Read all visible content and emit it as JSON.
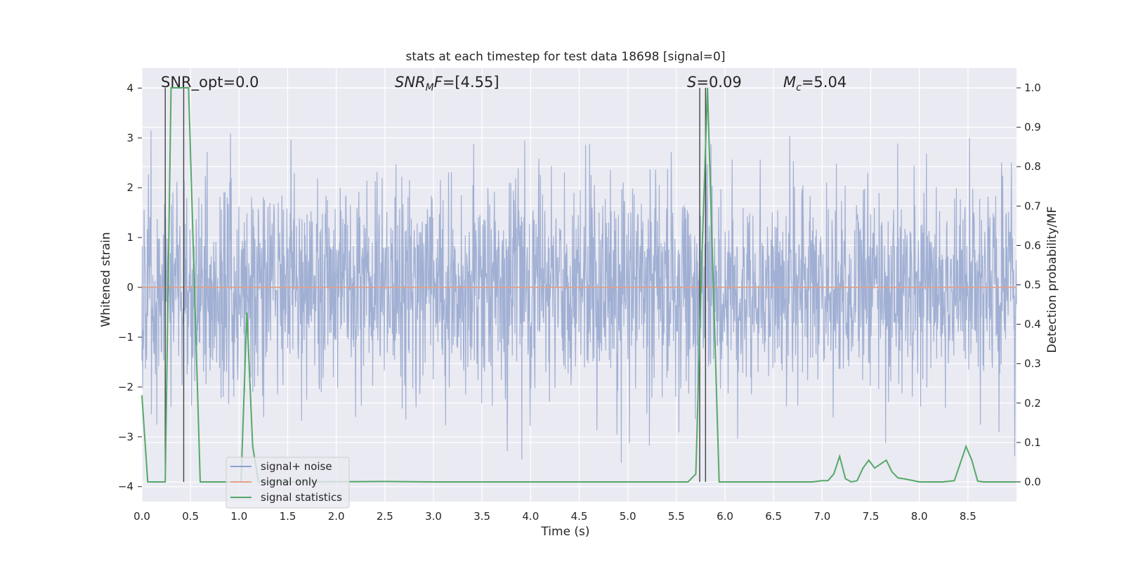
{
  "chart_data": {
    "type": "line",
    "title": "stats at each timestep for test data 18698 [signal=0]",
    "xlabel": "Time (s)",
    "ylabel": "Whitened strain",
    "ylabel_right": "Detection probability/MF",
    "xlim": [
      0.0,
      9.0
    ],
    "ylim": [
      -4.3,
      4.4
    ],
    "ylim_right": [
      -0.05,
      1.05
    ],
    "x_ticks": [
      "0.0",
      "0.5",
      "1.0",
      "1.5",
      "2.0",
      "2.5",
      "3.0",
      "3.5",
      "4.0",
      "4.5",
      "5.0",
      "5.5",
      "6.0",
      "6.5",
      "7.0",
      "7.5",
      "8.0",
      "8.5"
    ],
    "y_ticks": [
      "4",
      "3",
      "2",
      "1",
      "0",
      "−1",
      "−2",
      "−3",
      "−4"
    ],
    "y_ticks_right": [
      "1.0",
      "0.9",
      "0.8",
      "0.7",
      "0.6",
      "0.5",
      "0.4",
      "0.3",
      "0.2",
      "0.1",
      "0.0"
    ],
    "grid": true,
    "legend_position": "lower-left",
    "annotations": {
      "snr_opt": "SNR_opt=0.0",
      "snr_mf_italic": "SNR",
      "snr_mf_sub": "M",
      "snr_mf_rest": "F",
      "snr_mf_value": "=[4.55]",
      "s_italic": "S",
      "s_value": "=0.09",
      "mc_italic": "M",
      "mc_sub": "c",
      "mc_value": "=5.04"
    },
    "series": [
      {
        "name": "signal+ noise",
        "color": "#8da0cb",
        "description_values": "whitened noisy strain, roughly ±1.5 typical, peaks near ±3.3",
        "x": [
          0.0,
          9.0
        ],
        "y": [
          0.0,
          0.0
        ]
      },
      {
        "name": "signal only",
        "color": "#e5a086",
        "x": [
          0.0,
          9.0
        ],
        "y": [
          0.0,
          0.0
        ]
      },
      {
        "name": "signal statistics",
        "color": "#55a868",
        "axis": "right",
        "x": [
          0.0,
          0.06,
          0.12,
          0.18,
          0.24,
          0.3,
          0.36,
          0.42,
          0.48,
          0.54,
          0.6,
          0.66,
          0.72,
          0.78,
          0.84,
          0.9,
          0.96,
          1.02,
          1.08,
          1.14,
          1.2,
          1.26,
          1.32,
          1.38,
          1.44,
          1.5,
          2.5,
          3.0,
          4.0,
          5.0,
          5.5,
          5.62,
          5.7,
          5.76,
          5.82,
          5.88,
          5.94,
          6.0,
          6.5,
          6.9,
          7.0,
          7.06,
          7.12,
          7.18,
          7.24,
          7.3,
          7.36,
          7.42,
          7.48,
          7.54,
          7.6,
          7.66,
          7.72,
          7.78,
          7.84,
          7.9,
          8.0,
          8.12,
          8.24,
          8.36,
          8.48,
          8.54,
          8.6,
          8.66,
          8.72,
          8.8,
          9.0
        ],
        "y": [
          0.22,
          0.0,
          0.0,
          0.0,
          0.0,
          1.0,
          1.0,
          1.0,
          1.0,
          0.5,
          0.0,
          0.0,
          0.0,
          0.0,
          0.0,
          0.0,
          0.0,
          0.0,
          0.43,
          0.09,
          0.0,
          0.0,
          0.0,
          0.0,
          0.0,
          0.0,
          0.001,
          0.0,
          0.0,
          0.0,
          0.0,
          0.0,
          0.02,
          0.55,
          1.0,
          0.5,
          0.0,
          0.0,
          0.0,
          0.0,
          0.003,
          0.003,
          0.02,
          0.065,
          0.008,
          0.0,
          0.003,
          0.035,
          0.055,
          0.035,
          0.045,
          0.055,
          0.025,
          0.01,
          0.008,
          0.005,
          0.0,
          0.0,
          0.0,
          0.003,
          0.09,
          0.055,
          0.002,
          0.0,
          0.0,
          0.0,
          0.0
        ]
      }
    ],
    "vertical_lines": [
      0.24,
      0.43,
      5.74,
      5.8
    ]
  }
}
